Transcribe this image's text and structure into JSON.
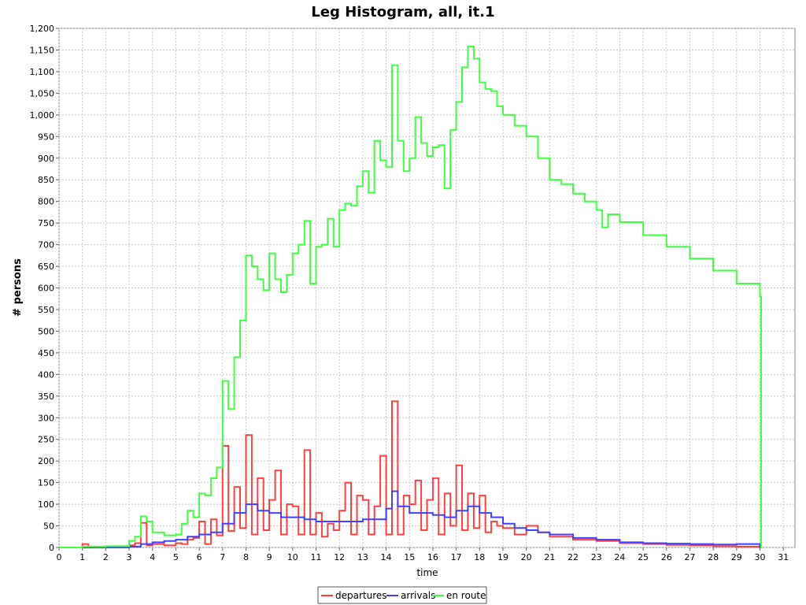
{
  "chart_data": {
    "type": "line",
    "title": "Leg Histogram, all, it.1",
    "xlabel": "time",
    "ylabel": "# persons",
    "xlim": [
      0,
      31.5
    ],
    "ylim": [
      0,
      1200
    ],
    "x_ticks": [
      "0",
      "1",
      "2",
      "3",
      "4",
      "5",
      "6",
      "7",
      "8",
      "9",
      "10",
      "11",
      "12",
      "13",
      "14",
      "15",
      "16",
      "17",
      "18",
      "19",
      "20",
      "21",
      "22",
      "23",
      "24",
      "25",
      "26",
      "27",
      "28",
      "29",
      "30",
      "31"
    ],
    "y_ticks": [
      "0",
      "50",
      "100",
      "150",
      "200",
      "250",
      "300",
      "350",
      "400",
      "450",
      "500",
      "550",
      "600",
      "650",
      "700",
      "750",
      "800",
      "850",
      "900",
      "950",
      "1,000",
      "1,050",
      "1,100",
      "1,150",
      "1,200"
    ],
    "grid": true,
    "step": "stepped series, 0.25 h bins",
    "legend_position": "bottom-center",
    "series": [
      {
        "name": "departures",
        "color": "#ff4040",
        "points": [
          [
            0,
            0
          ],
          [
            1,
            8
          ],
          [
            1.25,
            0
          ],
          [
            2,
            1
          ],
          [
            3,
            5
          ],
          [
            3.25,
            10
          ],
          [
            3.5,
            57
          ],
          [
            3.75,
            5
          ],
          [
            4,
            8
          ],
          [
            4.5,
            5
          ],
          [
            5,
            10
          ],
          [
            5.25,
            8
          ],
          [
            5.5,
            18
          ],
          [
            5.75,
            22
          ],
          [
            6,
            60
          ],
          [
            6.25,
            8
          ],
          [
            6.5,
            65
          ],
          [
            6.75,
            28
          ],
          [
            7,
            235
          ],
          [
            7.25,
            38
          ],
          [
            7.5,
            140
          ],
          [
            7.75,
            45
          ],
          [
            8,
            260
          ],
          [
            8.25,
            30
          ],
          [
            8.5,
            160
          ],
          [
            8.75,
            40
          ],
          [
            9,
            110
          ],
          [
            9.25,
            178
          ],
          [
            9.5,
            30
          ],
          [
            9.75,
            100
          ],
          [
            10,
            95
          ],
          [
            10.25,
            30
          ],
          [
            10.5,
            225
          ],
          [
            10.75,
            30
          ],
          [
            11,
            80
          ],
          [
            11.25,
            25
          ],
          [
            11.5,
            55
          ],
          [
            11.75,
            40
          ],
          [
            12,
            85
          ],
          [
            12.25,
            150
          ],
          [
            12.5,
            30
          ],
          [
            12.75,
            120
          ],
          [
            13,
            110
          ],
          [
            13.25,
            30
          ],
          [
            13.5,
            95
          ],
          [
            13.75,
            212
          ],
          [
            14,
            30
          ],
          [
            14.25,
            338
          ],
          [
            14.5,
            30
          ],
          [
            14.75,
            120
          ],
          [
            15,
            100
          ],
          [
            15.25,
            155
          ],
          [
            15.5,
            40
          ],
          [
            15.75,
            110
          ],
          [
            16,
            160
          ],
          [
            16.25,
            30
          ],
          [
            16.5,
            125
          ],
          [
            16.75,
            50
          ],
          [
            17,
            190
          ],
          [
            17.25,
            40
          ],
          [
            17.5,
            125
          ],
          [
            17.75,
            45
          ],
          [
            18,
            120
          ],
          [
            18.25,
            35
          ],
          [
            18.5,
            60
          ],
          [
            18.75,
            50
          ],
          [
            19,
            45
          ],
          [
            19.5,
            30
          ],
          [
            20,
            50
          ],
          [
            20.5,
            35
          ],
          [
            21,
            25
          ],
          [
            22,
            18
          ],
          [
            23,
            15
          ],
          [
            24,
            10
          ],
          [
            25,
            8
          ],
          [
            26,
            6
          ],
          [
            27,
            5
          ],
          [
            28,
            3
          ],
          [
            29,
            2
          ],
          [
            30,
            0
          ]
        ]
      },
      {
        "name": "arrivals",
        "color": "#4040ff",
        "points": [
          [
            0,
            0
          ],
          [
            3,
            2
          ],
          [
            3.5,
            8
          ],
          [
            4,
            12
          ],
          [
            4.5,
            15
          ],
          [
            5,
            18
          ],
          [
            5.5,
            25
          ],
          [
            6,
            30
          ],
          [
            6.5,
            35
          ],
          [
            7,
            55
          ],
          [
            7.5,
            80
          ],
          [
            8,
            100
          ],
          [
            8.5,
            85
          ],
          [
            9,
            80
          ],
          [
            9.5,
            70
          ],
          [
            10,
            70
          ],
          [
            10.5,
            65
          ],
          [
            11,
            60
          ],
          [
            11.5,
            60
          ],
          [
            12,
            60
          ],
          [
            12.5,
            60
          ],
          [
            13,
            65
          ],
          [
            13.5,
            65
          ],
          [
            14,
            90
          ],
          [
            14.25,
            130
          ],
          [
            14.5,
            95
          ],
          [
            15,
            80
          ],
          [
            15.5,
            80
          ],
          [
            16,
            75
          ],
          [
            16.5,
            70
          ],
          [
            17,
            85
          ],
          [
            17.5,
            95
          ],
          [
            18,
            80
          ],
          [
            18.5,
            70
          ],
          [
            19,
            55
          ],
          [
            19.5,
            45
          ],
          [
            20,
            40
          ],
          [
            20.5,
            35
          ],
          [
            21,
            30
          ],
          [
            22,
            22
          ],
          [
            23,
            18
          ],
          [
            24,
            12
          ],
          [
            25,
            10
          ],
          [
            26,
            9
          ],
          [
            27,
            8
          ],
          [
            28,
            7
          ],
          [
            29,
            8
          ],
          [
            30,
            0
          ]
        ]
      },
      {
        "name": "en route",
        "color": "#40ff40",
        "points": [
          [
            0,
            0
          ],
          [
            1,
            2
          ],
          [
            2,
            3
          ],
          [
            3,
            15
          ],
          [
            3.25,
            25
          ],
          [
            3.5,
            72
          ],
          [
            3.75,
            60
          ],
          [
            4,
            35
          ],
          [
            4.5,
            28
          ],
          [
            5,
            30
          ],
          [
            5.25,
            55
          ],
          [
            5.5,
            85
          ],
          [
            5.75,
            70
          ],
          [
            6,
            125
          ],
          [
            6.25,
            120
          ],
          [
            6.5,
            160
          ],
          [
            6.75,
            185
          ],
          [
            7,
            385
          ],
          [
            7.25,
            320
          ],
          [
            7.5,
            440
          ],
          [
            7.75,
            525
          ],
          [
            8,
            675
          ],
          [
            8.25,
            650
          ],
          [
            8.5,
            620
          ],
          [
            8.75,
            595
          ],
          [
            9,
            680
          ],
          [
            9.25,
            620
          ],
          [
            9.5,
            590
          ],
          [
            9.75,
            630
          ],
          [
            10,
            680
          ],
          [
            10.25,
            700
          ],
          [
            10.5,
            755
          ],
          [
            10.75,
            610
          ],
          [
            11,
            695
          ],
          [
            11.25,
            700
          ],
          [
            11.5,
            760
          ],
          [
            11.75,
            695
          ],
          [
            12,
            780
          ],
          [
            12.25,
            795
          ],
          [
            12.5,
            790
          ],
          [
            12.75,
            835
          ],
          [
            13,
            870
          ],
          [
            13.25,
            820
          ],
          [
            13.5,
            940
          ],
          [
            13.75,
            895
          ],
          [
            14,
            880
          ],
          [
            14.25,
            1115
          ],
          [
            14.5,
            940
          ],
          [
            14.75,
            870
          ],
          [
            15,
            900
          ],
          [
            15.25,
            995
          ],
          [
            15.5,
            935
          ],
          [
            15.75,
            905
          ],
          [
            16,
            925
          ],
          [
            16.25,
            930
          ],
          [
            16.5,
            830
          ],
          [
            16.75,
            965
          ],
          [
            17,
            1030
          ],
          [
            17.25,
            1110
          ],
          [
            17.5,
            1158
          ],
          [
            17.75,
            1130
          ],
          [
            18,
            1075
          ],
          [
            18.25,
            1060
          ],
          [
            18.5,
            1055
          ],
          [
            18.75,
            1020
          ],
          [
            19,
            1000
          ],
          [
            19.5,
            975
          ],
          [
            20,
            950
          ],
          [
            20.5,
            900
          ],
          [
            21,
            850
          ],
          [
            21.5,
            840
          ],
          [
            22,
            818
          ],
          [
            22.5,
            800
          ],
          [
            23,
            780
          ],
          [
            23.25,
            740
          ],
          [
            23.5,
            770
          ],
          [
            24,
            752
          ],
          [
            25,
            722
          ],
          [
            26,
            695
          ],
          [
            27,
            668
          ],
          [
            28,
            640
          ],
          [
            29,
            610
          ],
          [
            30,
            580
          ],
          [
            30.05,
            0
          ]
        ]
      }
    ]
  }
}
